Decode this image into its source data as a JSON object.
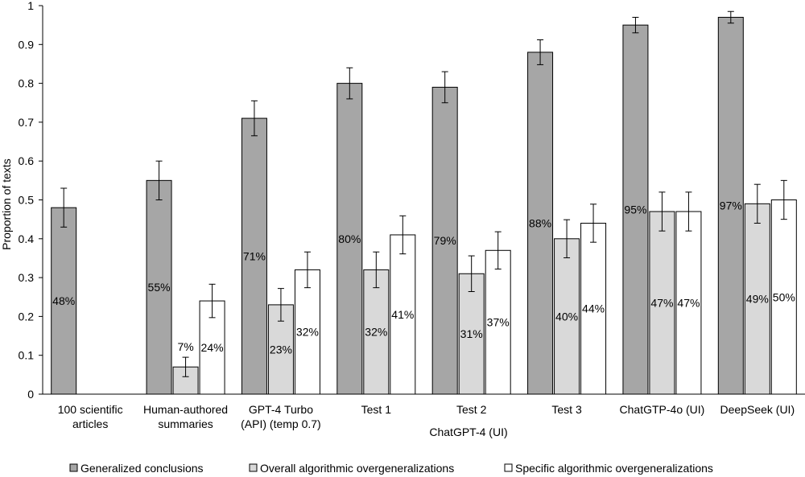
{
  "chart_data": {
    "type": "bar",
    "title": "",
    "xlabel": "",
    "ylabel": "Proportion of texts",
    "ylim": [
      0,
      1
    ],
    "yticks": [
      "0",
      "0.1",
      "0.2",
      "0.3",
      "0.4",
      "0.5",
      "0.6",
      "0.7",
      "0.8",
      "0.9",
      "1"
    ],
    "categories": [
      {
        "lines": [
          "100 scientific",
          "articles"
        ]
      },
      {
        "lines": [
          "Human-authored",
          "summaries"
        ]
      },
      {
        "lines": [
          "GPT-4 Turbo",
          "(API) (temp 0.7)"
        ]
      },
      {
        "lines": [
          "Test 1"
        ]
      },
      {
        "lines": [
          "Test 2"
        ]
      },
      {
        "lines": [
          "Test 3"
        ]
      },
      {
        "lines": [
          "ChatGTP-4o (UI)"
        ]
      },
      {
        "lines": [
          "DeepSeek (UI)"
        ]
      }
    ],
    "group_label": "ChatGPT-4 (UI)",
    "grid": false,
    "legend_position": "bottom",
    "series": [
      {
        "name": "Generalized conclusions",
        "color": "#a6a6a6",
        "values": [
          0.48,
          0.55,
          0.71,
          0.8,
          0.79,
          0.88,
          0.95,
          0.97
        ],
        "error": [
          0.05,
          0.05,
          0.045,
          0.04,
          0.04,
          0.032,
          0.02,
          0.015
        ],
        "labels": [
          "48%",
          "55%",
          "71%",
          "80%",
          "79%",
          "88%",
          "95%",
          "97%"
        ]
      },
      {
        "name": "Overall algorithmic overgeneralizations",
        "color": "#d9d9d9",
        "values": [
          null,
          0.07,
          0.23,
          0.32,
          0.31,
          0.4,
          0.47,
          0.49
        ],
        "error": [
          null,
          0.025,
          0.042,
          0.046,
          0.046,
          0.049,
          0.05,
          0.05
        ],
        "labels": [
          null,
          "7%",
          "23%",
          "32%",
          "31%",
          "40%",
          "47%",
          "49%"
        ]
      },
      {
        "name": "Specific algorithmic overgeneralizations",
        "color": "#ffffff",
        "values": [
          null,
          0.24,
          0.32,
          0.41,
          0.37,
          0.44,
          0.47,
          0.5
        ],
        "error": [
          null,
          0.043,
          0.046,
          0.049,
          0.048,
          0.049,
          0.05,
          0.05
        ],
        "labels": [
          null,
          "24%",
          "32%",
          "41%",
          "37%",
          "44%",
          "47%",
          "50%"
        ]
      }
    ]
  }
}
